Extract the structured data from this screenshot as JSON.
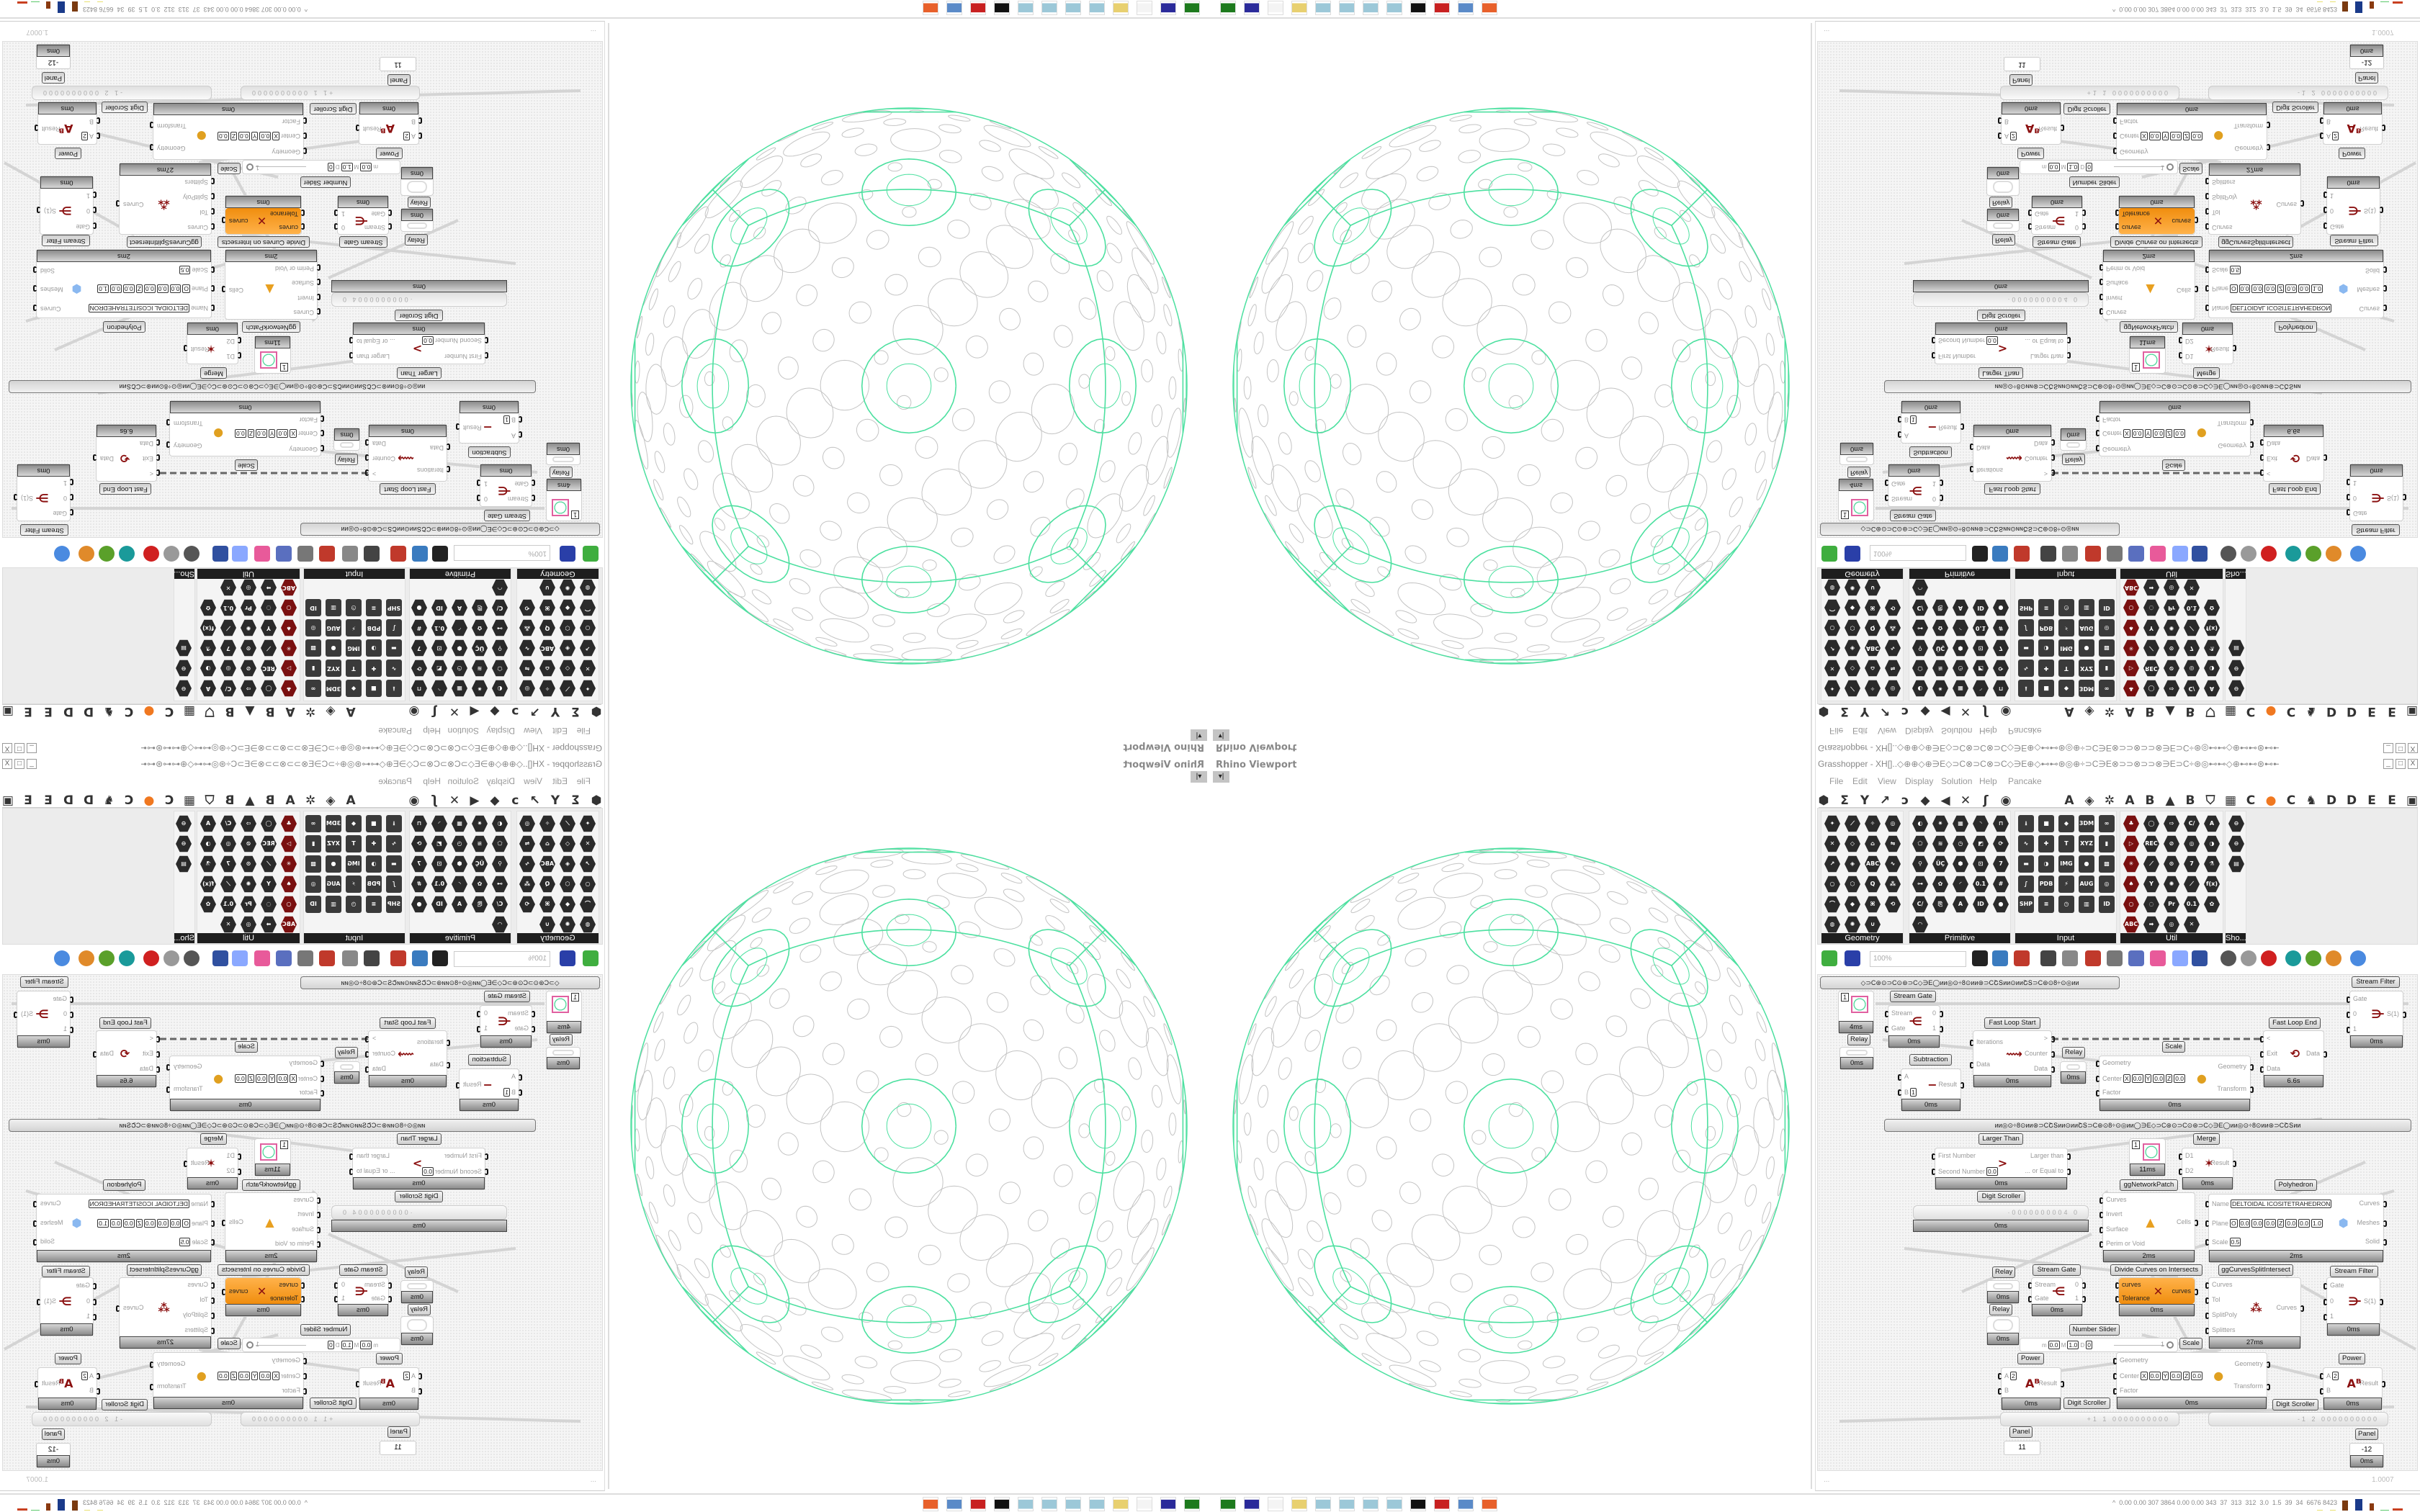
{
  "viewport": {
    "title": "Rhino Viewport",
    "menu_button": "▾|"
  },
  "grasshopper": {
    "title": "Grasshopper - XH[]..◇⊕⊕◇⊕∋E◇⊃C⊗⊃C⊗⊃C◇∋E⊕◇⊷⊷⊛◎⊕÷⊃C∋E⊗⊃⊃⊗⊃⊃⊗∋E⊃C÷⊛◎⊷⊷◇⊕⊷⊷⊛⊷⊷◎◇⊛÷÷⊛◇⊛⊷⊷◎⊷⊷⊕◇⊷⊷⊛◎⊕÷⊃C∋E⊗⊃⊃⊗⊃...",
    "window_controls": [
      "_",
      "□",
      "X"
    ],
    "menu": [
      "File",
      "Edit",
      "View",
      "Display",
      "Solution",
      "Help",
      "Pancake"
    ],
    "tabs": [
      "⬢",
      "Σ",
      "Y",
      "↗",
      "ↄ",
      "◆",
      "◀",
      "✕",
      "ʃ",
      "◉",
      "A",
      "◈",
      "✲",
      "A",
      "B",
      "▲",
      "B",
      "⛉",
      "▦",
      "C",
      "●",
      "C",
      "♞",
      "D",
      "D",
      "E",
      "E",
      "▣"
    ],
    "panels": [
      {
        "name": "Geometry",
        "icons": [
          "✦",
          "⟋",
          "✧",
          "◎",
          "✕",
          "◇",
          "⌂",
          "⇋",
          "↗",
          "◈",
          "ABC",
          "∿",
          "○",
          "⬡",
          "Q",
          "⁂",
          "⌒",
          "◆",
          "⌘",
          "⟲",
          "◍",
          "✺",
          "∪"
        ]
      },
      {
        "name": "Primitive",
        "icons": [
          "◐",
          "✷",
          "▦",
          "◝",
          "⊓",
          "⬠",
          "≋",
          "◷",
          "◩",
          "⟳",
          "⚲",
          "ÜÇ",
          "⬢",
          "⊡",
          "7",
          "⊶",
          "✿",
          "◜",
          "0.1",
          "#",
          "C/",
          "⎘",
          "A",
          "ID",
          "●",
          "◠"
        ]
      },
      {
        "name": "Input",
        "icons": [
          "⭳",
          "■",
          "◆",
          "3DM",
          "∞",
          "∿",
          "✚",
          "T",
          "XYZ",
          "▮",
          "▬",
          "◑",
          "IMG",
          "●",
          "▩",
          "∫",
          "PDB",
          "⚡",
          "AUG 20",
          "◎",
          "SHP",
          "≡",
          "◷",
          "▥",
          "ID"
        ]
      },
      {
        "name": "Util",
        "icons": [
          "♣",
          "◯",
          "⇨",
          "C/",
          "A",
          "▷",
          "REC",
          "⊘",
          "◎",
          "◑",
          "✳",
          "⟋",
          "⊙",
          "7",
          "⚗",
          "♠",
          "Y",
          "✺",
          "⟋",
          "f(x)",
          "○",
          "◌",
          "Pr",
          "0.1",
          "✿",
          "ABC",
          "➡",
          "◎",
          "✕"
        ]
      },
      {
        "name": "Sho...",
        "icons": [
          "⊖",
          "⊖",
          "▤"
        ]
      }
    ],
    "toolbar": {
      "zoom": "100%",
      "icons": [
        {
          "name": "new-document-icon",
          "color": "#3fae3f"
        },
        {
          "name": "save-icon",
          "color": "#2a3fa8"
        },
        {
          "name": "zoom-extents-icon",
          "color": "#222"
        },
        {
          "name": "preview-eye-icon",
          "color": "#3a7bbf"
        },
        {
          "name": "sketch-pen-icon",
          "color": "#c0392b"
        },
        {
          "name": "cluster-icon",
          "color": "#444"
        },
        {
          "name": "email-icon",
          "color": "#888"
        },
        {
          "name": "gha-icon",
          "color": "#c0392b"
        },
        {
          "name": "image-icon",
          "color": "#777"
        },
        {
          "name": "search-icon",
          "color": "#5a6fbf"
        },
        {
          "name": "package-icon",
          "color": "#e85a9a"
        },
        {
          "name": "balloon-icon",
          "color": "#8aa8ff"
        },
        {
          "name": "wires-icon",
          "color": "#3050a0"
        },
        {
          "name": "shaded-preview-icon",
          "color": "#555"
        },
        {
          "name": "wireframe-icon",
          "color": "#999"
        },
        {
          "name": "red-material-icon",
          "color": "#d02020"
        },
        {
          "name": "teal-material-icon",
          "color": "#1a9a9a"
        },
        {
          "name": "green-material-icon",
          "color": "#5aa02a"
        },
        {
          "name": "orange-sphere-icon",
          "color": "#e08a2a"
        },
        {
          "name": "blue-sphere-icon",
          "color": "#4a8ae0"
        }
      ]
    },
    "canvas": {
      "group_bars": [
        "◇⊃C⊛⊙⊃C⊙⊛⊃C◇∋E◯ᴎᴎ◎⊙÷8⊙ᴎᴎ⊛⊃CՇՏᴎᴎ⊙ᴎᴎՇՏ⊃C⊛⊙8÷⊙◎ᴎᴎ",
        "ᴎᴎ◎⊙÷8⊙ᴎᴎ⊛⊃CՇՏᴎᴎ⊙ᴎᴎՇՏ⊃C⊛⊙8÷⊙◎ᴎᴎ◯∋E◇⊃C⊛⊙⊃C⊙⊛⊃C◇∋E◯ᴎᴎ◎⊙÷8⊙ᴎᴎ⊛⊃CՇՏᴎᴎ"
      ],
      "components": [
        {
          "kind": "swatch",
          "value": "1",
          "time": "4ms"
        },
        {
          "kind": "relay",
          "label": "Relay",
          "time": "0ms"
        },
        {
          "kind": "node",
          "label": "Stream Gate",
          "inputs": [
            "Stream",
            "Gate"
          ],
          "outputs": [
            "0",
            "1"
          ],
          "icon": "stream-gate-icon",
          "time": "0ms"
        },
        {
          "kind": "node",
          "label": "Fast Loop Start",
          "inputs": [
            "Iterations",
            "Data"
          ],
          "outputs": [
            ">",
            "Counter",
            "Data"
          ],
          "icon": "loop-start-icon",
          "time": "0ms"
        },
        {
          "kind": "node",
          "label": "Subtraction",
          "inputs": [
            "A",
            "B"
          ],
          "inline": [
            null,
            [
              "1"
            ]
          ],
          "outputs": [
            "Result"
          ],
          "icon": "minus-icon",
          "time": "0ms"
        },
        {
          "kind": "relay",
          "label": "Relay",
          "time": "0ms"
        },
        {
          "kind": "node",
          "label": "Scale",
          "inputs": [
            "Geometry",
            "Center",
            "Factor"
          ],
          "inline": [
            null,
            [
              "X",
              "0.0",
              "Y",
              "0.0",
              "Z",
              "0.0"
            ],
            null
          ],
          "outputs": [
            "Geometry",
            "Transform"
          ],
          "icon": "scale-icon",
          "time": "0ms"
        },
        {
          "kind": "node",
          "label": "Fast Loop End",
          "inputs": [
            "<",
            "Exit",
            "Data"
          ],
          "outputs": [
            "Data"
          ],
          "icon": "loop-end-icon",
          "time": "6.6s"
        },
        {
          "kind": "node",
          "label": "Stream Filter",
          "inputs": [
            "Gate",
            "0",
            "1"
          ],
          "outputs": [
            "S(1)"
          ],
          "icon": "stream-filter-icon",
          "time": "0ms"
        },
        {
          "kind": "node",
          "label": "Larger Than",
          "inputs": [
            "First Number",
            "Second Number"
          ],
          "inline": [
            null,
            [
              "0.0"
            ]
          ],
          "outputs": [
            "Larger than",
            "... or Equal to"
          ],
          "icon": "greater-than-icon",
          "time": "0ms"
        },
        {
          "kind": "swatch",
          "value": "1",
          "time": "11ms"
        },
        {
          "kind": "node",
          "label": "Merge",
          "inputs": [
            "D1",
            "D2"
          ],
          "outputs": [
            "Result"
          ],
          "icon": "merge-icon",
          "time": "0ms"
        },
        {
          "kind": "node",
          "label": "ggNetworkPatch",
          "inputs": [
            "Curves",
            "Invert",
            "Surface",
            "Perim or Void"
          ],
          "outputs": [
            "Cells"
          ],
          "icon": "cells-icon",
          "time": "2ms"
        },
        {
          "kind": "node",
          "label": "Polyhedron",
          "inputs": [
            "Name",
            "Plane",
            "Scale"
          ],
          "inline": [
            [
              "DELTOIDAL ICOSITETRAHEDRON"
            ],
            [
              "O",
              "0.0",
              "0.0",
              "0.0",
              "Z",
              "0.0",
              "0.0",
              "1.0"
            ],
            [
              "0.5"
            ]
          ],
          "outputs": [
            "Curves",
            "Meshes",
            "Solid"
          ],
          "icon": "polyhedron-icon",
          "time": "2ms"
        },
        {
          "kind": "scroller",
          "label": "Digit Scroller",
          "digits": "·0000000004 0",
          "time": "0ms"
        },
        {
          "kind": "relay",
          "label": "Relay",
          "time": "0ms"
        },
        {
          "kind": "node",
          "label": "Stream Gate",
          "inputs": [
            "Stream",
            "Gate"
          ],
          "outputs": [
            "0",
            "1"
          ],
          "icon": "stream-gate-icon",
          "time": "0ms"
        },
        {
          "kind": "node",
          "orange": true,
          "label": "Divide Curves on Intersects",
          "inputs": [
            "curves",
            "Tolerance"
          ],
          "outputs": [
            "curves"
          ],
          "icon": "divide-curves-icon",
          "time": "0ms"
        },
        {
          "kind": "node",
          "label": "ggCurvesSplitIntersect",
          "inputs": [
            "Curves",
            "Tol",
            "SplitPoly",
            "Splitters"
          ],
          "outputs": [
            "Curves"
          ],
          "icon": "split-icon",
          "time": "27ms"
        },
        {
          "kind": "node",
          "label": "Stream Filter",
          "inputs": [
            "Gate",
            "0",
            "1"
          ],
          "outputs": [
            "S(1)"
          ],
          "icon": "stream-filter-icon",
          "time": "0ms"
        },
        {
          "kind": "relay",
          "label": "Relay",
          "time": "0ms"
        },
        {
          "kind": "slider",
          "label": "Number Slider",
          "min": "0.0",
          "max": "1.0",
          "decimals": "0",
          "value": "1"
        },
        {
          "kind": "node",
          "label": "Scale",
          "inputs": [
            "Geometry",
            "Center",
            "Factor"
          ],
          "inline": [
            null,
            [
              "X",
              "0.0",
              "Y",
              "0.0",
              "Z",
              "0.0"
            ],
            null
          ],
          "outputs": [
            "Geometry",
            "Transform"
          ],
          "icon": "scale-icon",
          "time": "0ms"
        },
        {
          "kind": "node",
          "label": "Power",
          "inputs": [
            "A",
            "B"
          ],
          "inline": [
            [
              "2"
            ],
            null
          ],
          "outputs": [
            "Result"
          ],
          "icon": "power-icon",
          "time": "0ms"
        },
        {
          "kind": "scroller",
          "label": "Digit Scroller",
          "digits": "+1 1 0000000000"
        },
        {
          "kind": "panel",
          "label": "Panel",
          "value": "11"
        },
        {
          "kind": "scroller",
          "label": "Digit Scroller",
          "digits": "-1 2 0000000000"
        },
        {
          "kind": "node",
          "label": "Power",
          "inputs": [
            "A",
            "B"
          ],
          "inline": [
            [
              "2"
            ],
            null
          ],
          "outputs": [
            "Result"
          ],
          "icon": "power-icon",
          "time": "0ms"
        },
        {
          "kind": "panel",
          "label": "Panel",
          "value": "-12",
          "time": "0ms"
        }
      ]
    },
    "status_left": "...",
    "status_right": "1.0007"
  },
  "taskbar": {
    "icons": [
      {
        "name": "battery-app-icon",
        "color": "#1d7a1d"
      },
      {
        "name": "floppy-64-icon",
        "color": "#2a2a9a"
      },
      {
        "name": "blank-icon",
        "color": "#f4f4f4"
      },
      {
        "name": "folder-icon",
        "color": "#e8d070"
      },
      {
        "name": "notepad-icon",
        "color": "#9cc8d8"
      },
      {
        "name": "notepad-icon",
        "color": "#9cc8d8"
      },
      {
        "name": "notepad-icon",
        "color": "#9cc8d8"
      },
      {
        "name": "notepad-icon",
        "color": "#9cc8d8"
      },
      {
        "name": "inkscape-icon",
        "color": "#111"
      },
      {
        "name": "red-app-icon",
        "color": "#c82020"
      },
      {
        "name": "calculator-icon",
        "color": "#5a8ac8"
      },
      {
        "name": "firefox-icon",
        "color": "#e8602a"
      }
    ],
    "tray_text": "0.00 0.00 307 3864 0.00 0.00 343  37  313  312  3.0  1.5  39  34  6676 8423",
    "tray_arrow": "^"
  }
}
